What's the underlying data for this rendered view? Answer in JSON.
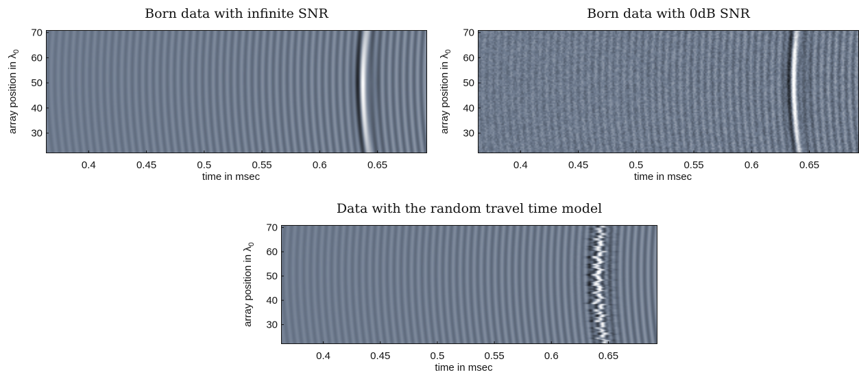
{
  "chart_data": [
    {
      "type": "heatmap",
      "variant": "clean",
      "title": "Born data with infinite SNR",
      "xlabel": "time in  msec",
      "ylabel": "array position in λ",
      "ylabel_subscript": "0",
      "xlim": [
        0.363,
        0.693
      ],
      "ylim": [
        22,
        71
      ],
      "xticks": [
        0.4,
        0.45,
        0.5,
        0.55,
        0.6,
        0.65
      ],
      "xtick_labels": [
        "0.4",
        "0.45",
        "0.5",
        "0.55",
        "0.6",
        "0.65"
      ],
      "yticks": [
        30,
        40,
        50,
        60,
        70
      ],
      "ytick_labels": [
        "30",
        "40",
        "50",
        "60",
        "70"
      ],
      "arrival_curve": {
        "t_at_center": 0.638,
        "center_position": 50,
        "curvature": 6.5e-06
      },
      "colors": {
        "background": "#6d7a8e",
        "positive": "#ffffff",
        "negative": "#000000"
      }
    },
    {
      "type": "heatmap",
      "variant": "noisy",
      "title": "Born data with 0dB SNR",
      "xlabel": "time in  msec",
      "ylabel": "array position in λ",
      "ylabel_subscript": "0",
      "xlim": [
        0.363,
        0.693
      ],
      "ylim": [
        22,
        71
      ],
      "xticks": [
        0.4,
        0.45,
        0.5,
        0.55,
        0.6,
        0.65
      ],
      "xtick_labels": [
        "0.4",
        "0.45",
        "0.5",
        "0.55",
        "0.6",
        "0.65"
      ],
      "yticks": [
        30,
        40,
        50,
        60,
        70
      ],
      "ytick_labels": [
        "30",
        "40",
        "50",
        "60",
        "70"
      ],
      "arrival_curve": {
        "t_at_center": 0.637,
        "center_position": 50,
        "curvature": 6.5e-06
      },
      "colors": {
        "background": "#6d7a8e",
        "positive": "#ffffff",
        "negative": "#000000"
      }
    },
    {
      "type": "heatmap",
      "variant": "random",
      "title": "Data with the random travel time model",
      "xlabel": "time in  msec",
      "ylabel": "array position in λ",
      "ylabel_subscript": "0",
      "xlim": [
        0.363,
        0.693
      ],
      "ylim": [
        22,
        71
      ],
      "xticks": [
        0.4,
        0.45,
        0.5,
        0.55,
        0.6,
        0.65
      ],
      "xtick_labels": [
        "0.4",
        "0.45",
        "0.5",
        "0.55",
        "0.6",
        "0.65"
      ],
      "yticks": [
        30,
        40,
        50,
        60,
        70
      ],
      "ytick_labels": [
        "30",
        "40",
        "50",
        "60",
        "70"
      ],
      "arrival_curve": {
        "t_at_center": 0.641,
        "center_position": 50,
        "curvature": 6.5e-06
      },
      "colors": {
        "background": "#6d7a8e",
        "positive": "#ffffff",
        "negative": "#000000"
      }
    }
  ]
}
